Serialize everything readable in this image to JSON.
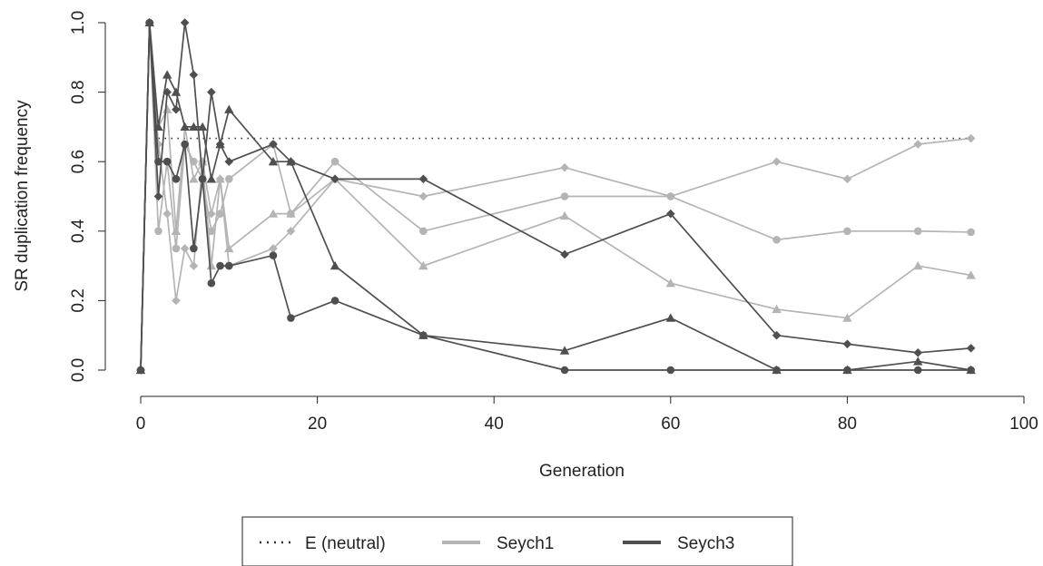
{
  "chart_data": {
    "type": "line",
    "title": "",
    "xlabel": "Generation",
    "ylabel": "SR duplication frequency",
    "xlim": [
      0,
      100
    ],
    "ylim": [
      0,
      1
    ],
    "xticks": [
      "0",
      "20",
      "40",
      "60",
      "80",
      "100"
    ],
    "yticks": [
      "0.0",
      "0.2",
      "0.4",
      "0.6",
      "0.8",
      "1.0"
    ],
    "grid": false,
    "legend_placement": "bottom",
    "colors": {
      "light": "#b4b4b4",
      "dark": "#4f4f4f",
      "neutral": "#333333"
    },
    "legend": [
      {
        "label": "E (neutral)",
        "style": "dotted",
        "color": "#333333"
      },
      {
        "label": "Seych1",
        "style": "solid",
        "color": "#b4b4b4"
      },
      {
        "label": "Seych3",
        "style": "solid",
        "color": "#4f4f4f"
      }
    ],
    "neutral": {
      "x": [
        2,
        94
      ],
      "y": [
        0.667,
        0.667
      ]
    },
    "series": [
      {
        "group": "Seych1",
        "marker": "circle",
        "x": [
          0,
          1,
          2,
          3,
          4,
          5,
          6,
          7,
          8,
          9,
          10,
          15,
          17,
          22,
          32,
          48,
          60,
          72,
          80,
          88,
          94
        ],
        "y": [
          0,
          1,
          0.4,
          0.6,
          0.35,
          0.65,
          0.6,
          0.55,
          0.4,
          0.45,
          0.55,
          0.65,
          0.45,
          0.6,
          0.4,
          0.5,
          0.5,
          0.375,
          0.4,
          0.4,
          0.397
        ]
      },
      {
        "group": "Seych1",
        "marker": "triangle",
        "x": [
          0,
          1,
          2,
          3,
          4,
          5,
          6,
          7,
          8,
          9,
          10,
          15,
          17,
          22,
          32,
          48,
          60,
          72,
          80,
          88,
          94
        ],
        "y": [
          0,
          1,
          0.7,
          0.75,
          0.4,
          0.7,
          0.55,
          0.6,
          0.3,
          0.55,
          0.35,
          0.45,
          0.45,
          0.55,
          0.3,
          0.444,
          0.25,
          0.175,
          0.15,
          0.3,
          0.273
        ]
      },
      {
        "group": "Seych1",
        "marker": "diamond",
        "x": [
          0,
          1,
          2,
          3,
          4,
          5,
          6,
          7,
          8,
          9,
          10,
          15,
          17,
          22,
          32,
          48,
          60,
          72,
          80,
          88,
          94
        ],
        "y": [
          0,
          1,
          0.65,
          0.45,
          0.2,
          0.35,
          0.3,
          0.6,
          0.45,
          0.55,
          0.3,
          0.35,
          0.4,
          0.55,
          0.5,
          0.583,
          0.5,
          0.6,
          0.55,
          0.65,
          0.667
        ]
      },
      {
        "group": "Seych3",
        "marker": "circle",
        "x": [
          0,
          1,
          2,
          3,
          4,
          5,
          6,
          7,
          8,
          9,
          10,
          15,
          17,
          22,
          32,
          48,
          60,
          72,
          80,
          88,
          94
        ],
        "y": [
          0,
          1,
          0.6,
          0.6,
          0.55,
          0.65,
          0.35,
          0.55,
          0.25,
          0.3,
          0.3,
          0.33,
          0.15,
          0.2,
          0.1,
          0,
          0,
          0,
          0,
          0,
          0
        ]
      },
      {
        "group": "Seych3",
        "marker": "triangle",
        "x": [
          0,
          1,
          2,
          3,
          4,
          5,
          6,
          7,
          8,
          9,
          10,
          15,
          17,
          22,
          32,
          48,
          60,
          72,
          80,
          88,
          94
        ],
        "y": [
          0,
          1,
          0.7,
          0.85,
          0.8,
          0.7,
          0.7,
          0.7,
          0.55,
          0.65,
          0.75,
          0.6,
          0.6,
          0.3,
          0.1,
          0.056,
          0.15,
          0,
          0,
          0.025,
          0
        ]
      },
      {
        "group": "Seych3",
        "marker": "diamond",
        "x": [
          0,
          1,
          2,
          3,
          4,
          5,
          6,
          7,
          8,
          9,
          10,
          15,
          17,
          22,
          32,
          48,
          60,
          72,
          80,
          88,
          94
        ],
        "y": [
          0,
          1,
          0.5,
          0.8,
          0.75,
          1.0,
          0.85,
          0.55,
          0.8,
          0.65,
          0.6,
          0.65,
          0.6,
          0.55,
          0.55,
          0.333,
          0.45,
          0.1,
          0.075,
          0.05,
          0.063
        ]
      }
    ]
  }
}
